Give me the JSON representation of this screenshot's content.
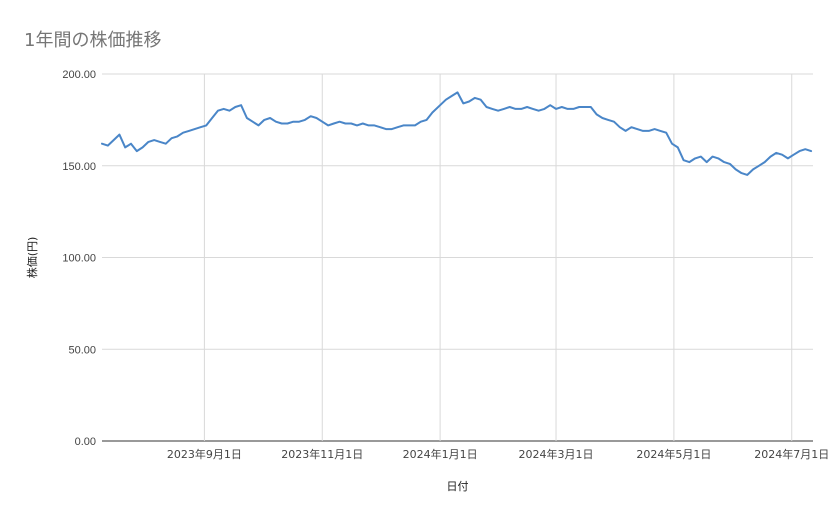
{
  "chart_data": {
    "type": "line",
    "title": "1年間の株価推移",
    "xlabel": "日付",
    "ylabel": "株価(円)",
    "ylim": [
      0,
      200
    ],
    "yticks": [
      "0.00",
      "50.00",
      "100.00",
      "150.00",
      "200.00"
    ],
    "xlim": [
      "2023-07-10",
      "2024-07-12"
    ],
    "xticks": [
      {
        "date": "2023-09-01",
        "label": "2023年9月1日"
      },
      {
        "date": "2023-11-01",
        "label": "2023年11月1日"
      },
      {
        "date": "2024-01-01",
        "label": "2024年1月1日"
      },
      {
        "date": "2024-03-01",
        "label": "2024年3月1日"
      },
      {
        "date": "2024-05-01",
        "label": "2024年5月1日"
      },
      {
        "date": "2024-07-01",
        "label": "2024年7月1日"
      }
    ],
    "grid": true,
    "line_color": "#4a86c8",
    "series": [
      {
        "x": [
          "2023-07-10",
          "2023-07-13",
          "2023-07-16",
          "2023-07-19",
          "2023-07-22",
          "2023-07-25",
          "2023-07-28",
          "2023-07-31",
          "2023-08-03",
          "2023-08-06",
          "2023-08-09",
          "2023-08-12",
          "2023-08-15",
          "2023-08-18",
          "2023-08-21",
          "2023-08-24",
          "2023-08-27",
          "2023-08-30",
          "2023-09-02",
          "2023-09-05",
          "2023-09-08",
          "2023-09-11",
          "2023-09-14",
          "2023-09-17",
          "2023-09-20",
          "2023-09-23",
          "2023-09-26",
          "2023-09-29",
          "2023-10-02",
          "2023-10-05",
          "2023-10-08",
          "2023-10-11",
          "2023-10-14",
          "2023-10-17",
          "2023-10-20",
          "2023-10-23",
          "2023-10-26",
          "2023-10-29",
          "2023-11-01",
          "2023-11-04",
          "2023-11-07",
          "2023-11-10",
          "2023-11-13",
          "2023-11-16",
          "2023-11-19",
          "2023-11-22",
          "2023-11-25",
          "2023-11-28",
          "2023-12-01",
          "2023-12-04",
          "2023-12-07",
          "2023-12-10",
          "2023-12-13",
          "2023-12-16",
          "2023-12-19",
          "2023-12-22",
          "2023-12-25",
          "2023-12-28",
          "2024-01-01",
          "2024-01-04",
          "2024-01-07",
          "2024-01-10",
          "2024-01-13",
          "2024-01-16",
          "2024-01-19",
          "2024-01-22",
          "2024-01-25",
          "2024-01-28",
          "2024-01-31",
          "2024-02-03",
          "2024-02-06",
          "2024-02-09",
          "2024-02-12",
          "2024-02-15",
          "2024-02-18",
          "2024-02-21",
          "2024-02-24",
          "2024-02-27",
          "2024-03-01",
          "2024-03-04",
          "2024-03-07",
          "2024-03-10",
          "2024-03-13",
          "2024-03-16",
          "2024-03-19",
          "2024-03-22",
          "2024-03-25",
          "2024-03-28",
          "2024-03-31",
          "2024-04-03",
          "2024-04-06",
          "2024-04-09",
          "2024-04-12",
          "2024-04-15",
          "2024-04-18",
          "2024-04-21",
          "2024-04-24",
          "2024-04-27",
          "2024-04-30",
          "2024-05-03",
          "2024-05-06",
          "2024-05-09",
          "2024-05-12",
          "2024-05-15",
          "2024-05-18",
          "2024-05-21",
          "2024-05-24",
          "2024-05-27",
          "2024-05-30",
          "2024-06-02",
          "2024-06-05",
          "2024-06-08",
          "2024-06-11",
          "2024-06-14",
          "2024-06-17",
          "2024-06-20",
          "2024-06-23",
          "2024-06-26",
          "2024-06-29",
          "2024-07-02",
          "2024-07-05",
          "2024-07-08",
          "2024-07-11"
        ],
        "values": [
          162,
          161,
          164,
          167,
          160,
          162,
          158,
          160,
          163,
          164,
          163,
          162,
          165,
          166,
          168,
          169,
          170,
          171,
          172,
          176,
          180,
          181,
          180,
          182,
          183,
          176,
          174,
          172,
          175,
          176,
          174,
          173,
          173,
          174,
          174,
          175,
          177,
          176,
          174,
          172,
          173,
          174,
          173,
          173,
          172,
          173,
          172,
          172,
          171,
          170,
          170,
          171,
          172,
          172,
          172,
          174,
          175,
          179,
          183,
          186,
          188,
          190,
          184,
          185,
          187,
          186,
          182,
          181,
          180,
          181,
          182,
          181,
          181,
          182,
          181,
          180,
          181,
          183,
          181,
          182,
          181,
          181,
          182,
          182,
          182,
          178,
          176,
          175,
          174,
          171,
          169,
          171,
          170,
          169,
          169,
          170,
          169,
          168,
          162,
          160,
          153,
          152,
          154,
          155,
          152,
          155,
          154,
          152,
          151,
          148,
          146,
          145,
          148,
          150,
          152,
          155,
          157,
          156,
          154,
          156,
          158,
          159,
          158
        ]
      }
    ]
  }
}
